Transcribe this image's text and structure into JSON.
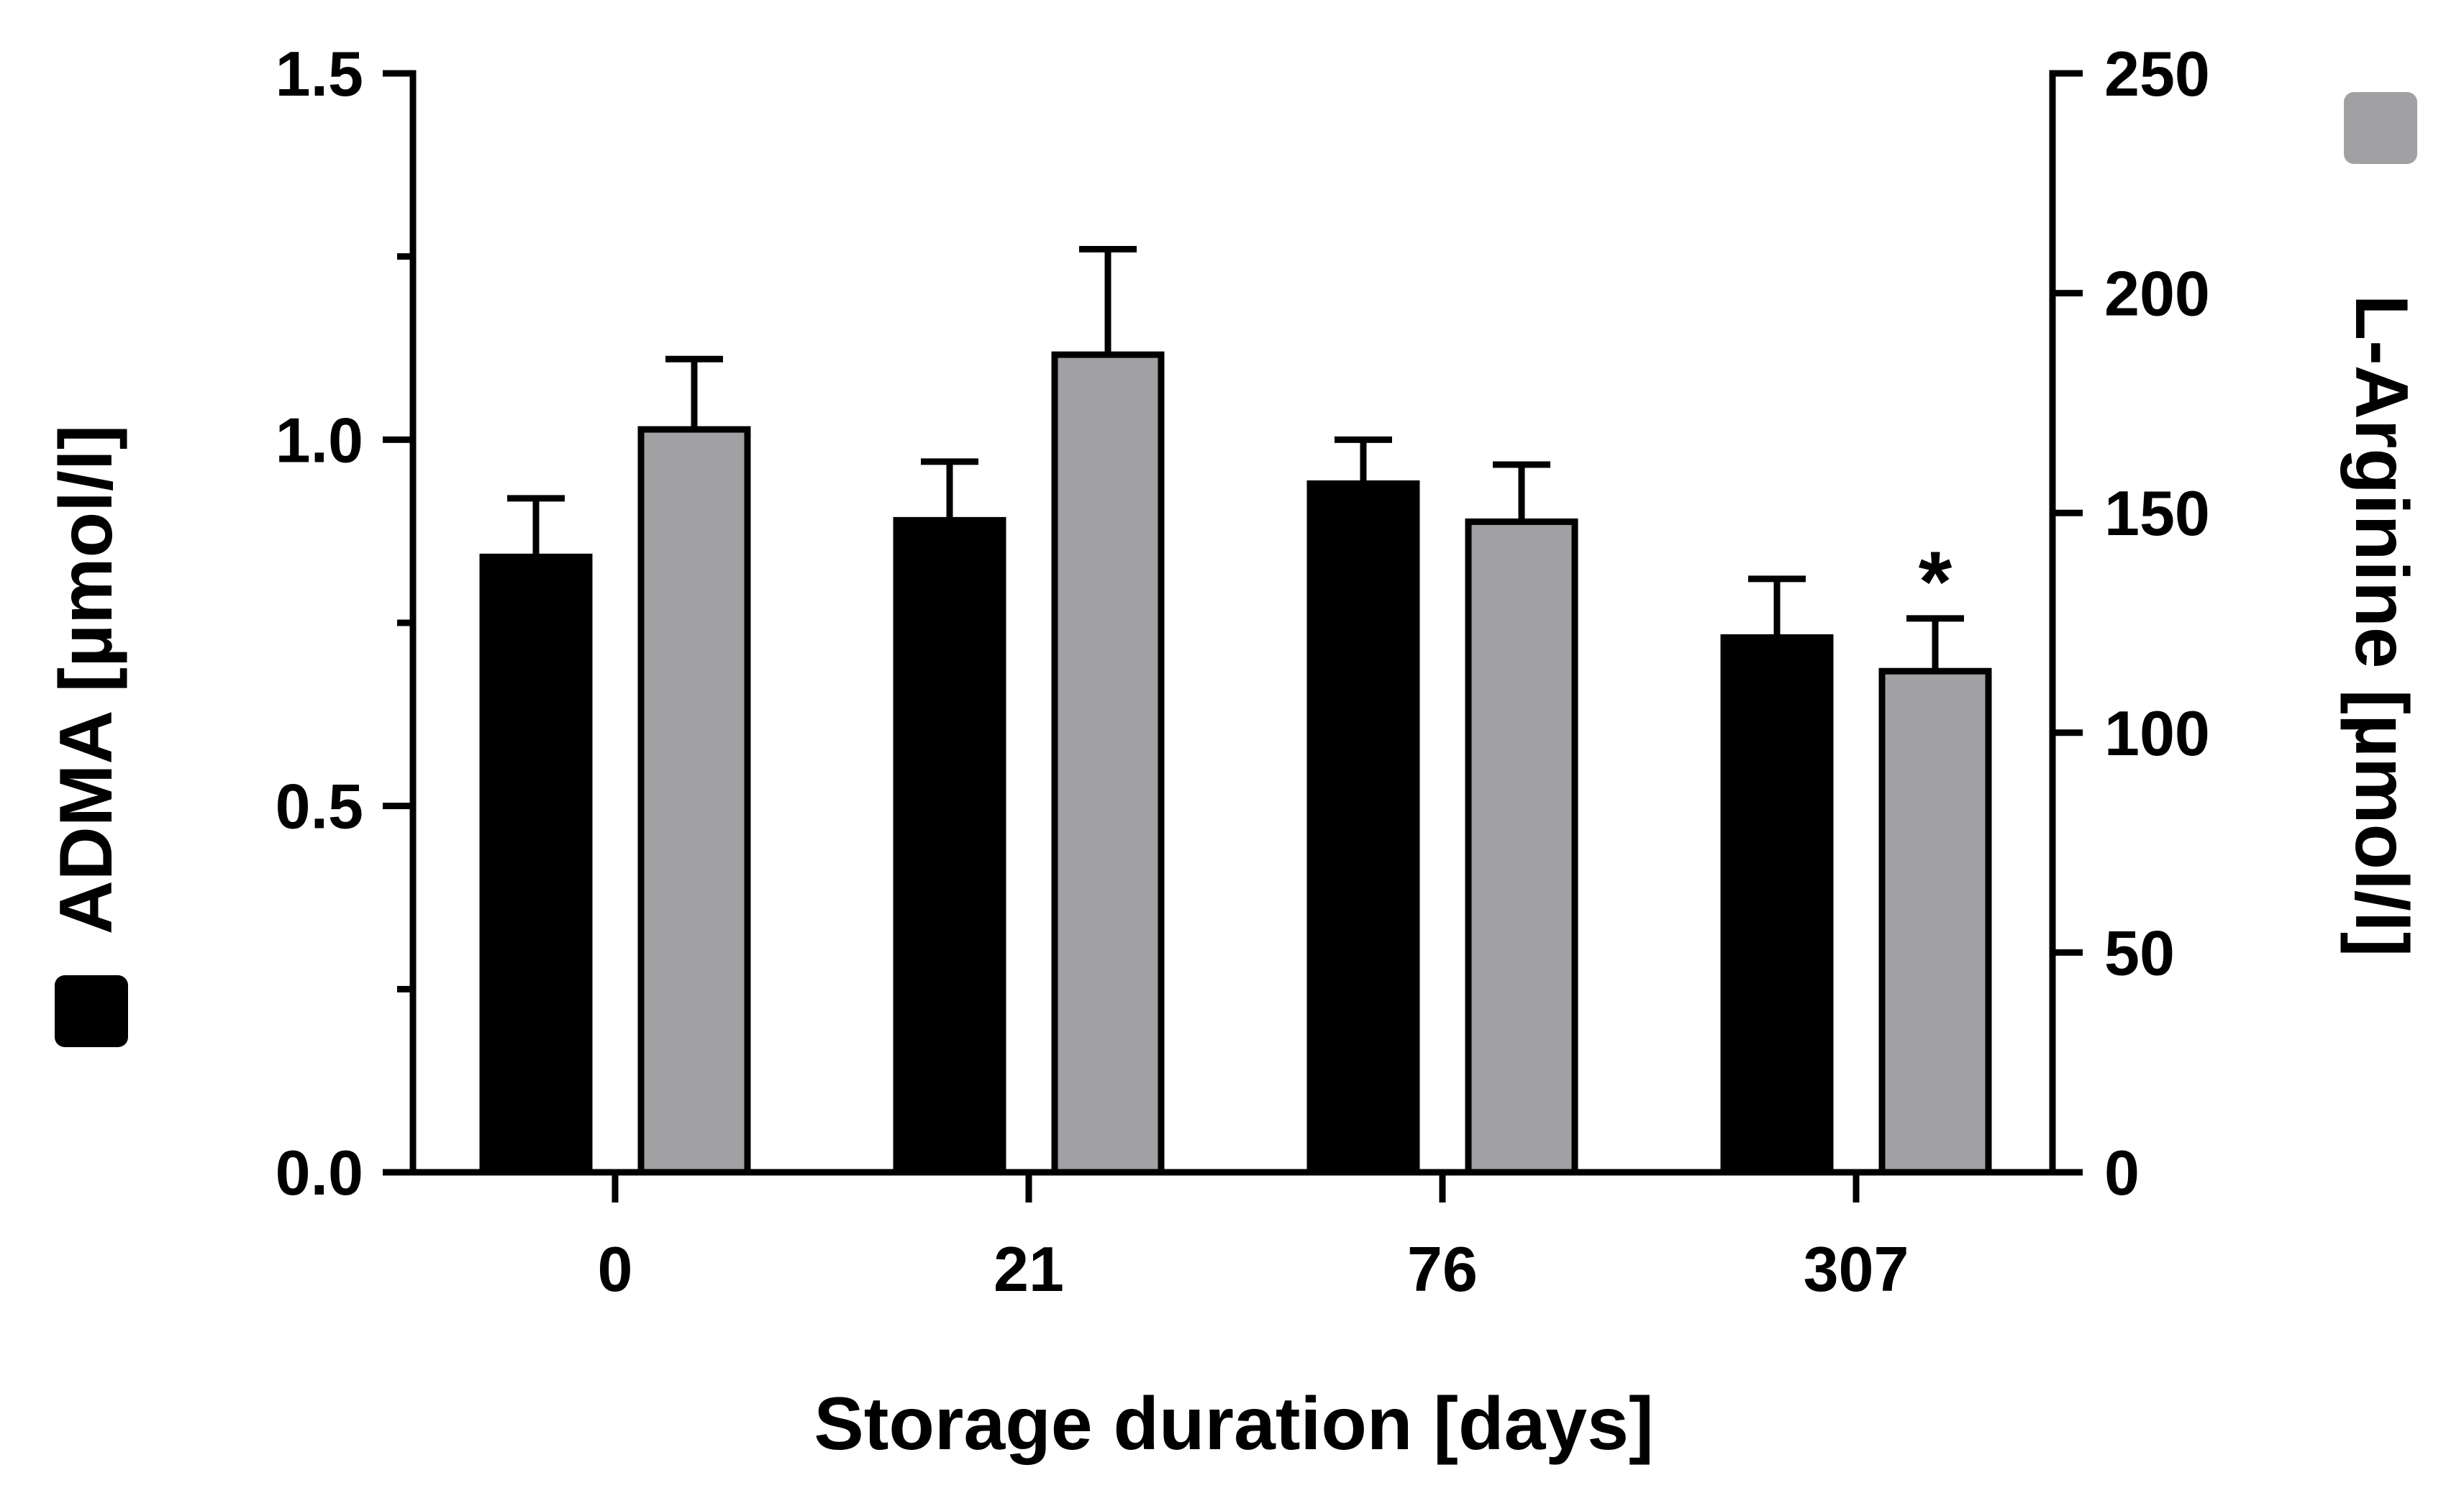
{
  "chart_data": {
    "type": "bar",
    "title": "",
    "xlabel": "Storage duration [days]",
    "categories": [
      "0",
      "21",
      "76",
      "307"
    ],
    "left_axis": {
      "label": "ADMA [µmol/l]",
      "ylim": [
        0,
        1.5
      ],
      "ticks": [
        "0.0",
        "0.5",
        "1.0",
        "1.5"
      ],
      "tick_values": [
        0,
        0.5,
        1.0,
        1.5
      ],
      "minor_tick_values": [
        0.25,
        0.75,
        1.25
      ]
    },
    "right_axis": {
      "label": "L-Arginine [µmol/l]",
      "ylim": [
        0,
        250
      ],
      "ticks": [
        "0",
        "50",
        "100",
        "150",
        "200",
        "250"
      ],
      "tick_values": [
        0,
        50,
        100,
        150,
        200,
        250
      ]
    },
    "series": [
      {
        "name": "ADMA",
        "axis": "left",
        "color": "#000000",
        "values": [
          0.84,
          0.89,
          0.94,
          0.73
        ],
        "error_upper": [
          0.92,
          0.97,
          1.0,
          0.81
        ]
      },
      {
        "name": "L-Arginine",
        "axis": "right",
        "color": "#a1a1a3",
        "values": [
          169,
          186,
          148,
          114
        ],
        "error_upper": [
          185,
          210,
          161,
          126
        ]
      }
    ],
    "annotations": [
      {
        "text": "*",
        "category": "307",
        "series": "L-Arginine"
      }
    ],
    "grid": false
  }
}
